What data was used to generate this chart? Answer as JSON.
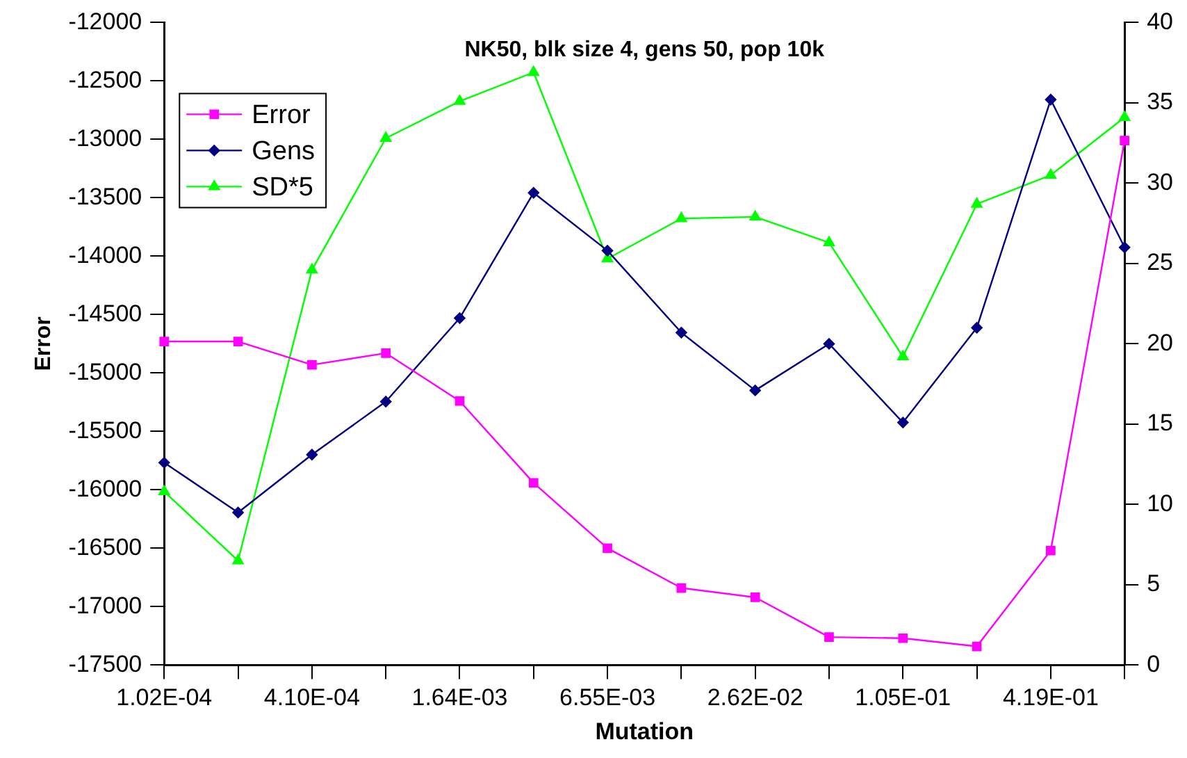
{
  "chart_data": {
    "type": "line",
    "title": "NK50, blk size 4, gens 50, pop 10k",
    "xlabel": "Mutation",
    "ylabel": "Error",
    "categories": [
      "1.02E-04",
      null,
      "4.10E-04",
      null,
      "1.64E-03",
      null,
      "6.55E-03",
      null,
      "2.62E-02",
      null,
      "1.05E-01",
      null,
      "4.19E-01",
      null
    ],
    "series": [
      {
        "name": "Error",
        "color": "#ff00ff",
        "marker": "square",
        "values": [
          -14730,
          -14730,
          -14930,
          -14830,
          -15240,
          -15940,
          -16500,
          -16840,
          -16920,
          -17260,
          -17270,
          -17340,
          -16520,
          -13010
        ]
      },
      {
        "name": "Gens",
        "color": "#000080",
        "marker": "diamond",
        "axis": "y2",
        "values": [
          12.6,
          9.5,
          13.1,
          16.4,
          21.6,
          29.4,
          25.8,
          20.7,
          17.1,
          20.0,
          15.1,
          21.0,
          35.2,
          26.0
        ]
      },
      {
        "name": "SD*5",
        "color": "#00ff00",
        "marker": "triangle",
        "axis": "y2",
        "values": [
          10.8,
          6.5,
          24.6,
          32.8,
          35.1,
          36.9,
          25.3,
          27.8,
          27.9,
          26.3,
          19.2,
          28.7,
          30.5,
          34.1
        ]
      }
    ],
    "ylim": [
      -17500,
      -12000
    ],
    "yticks": [
      -17500,
      -17000,
      -16500,
      -16000,
      -15500,
      -15000,
      -14500,
      -14000,
      -13500,
      -13000,
      -12500,
      -12000
    ],
    "y2lim": [
      0,
      40
    ],
    "y2ticks": [
      0,
      5,
      10,
      15,
      20,
      25,
      30,
      35,
      40
    ],
    "legend": "top left"
  }
}
